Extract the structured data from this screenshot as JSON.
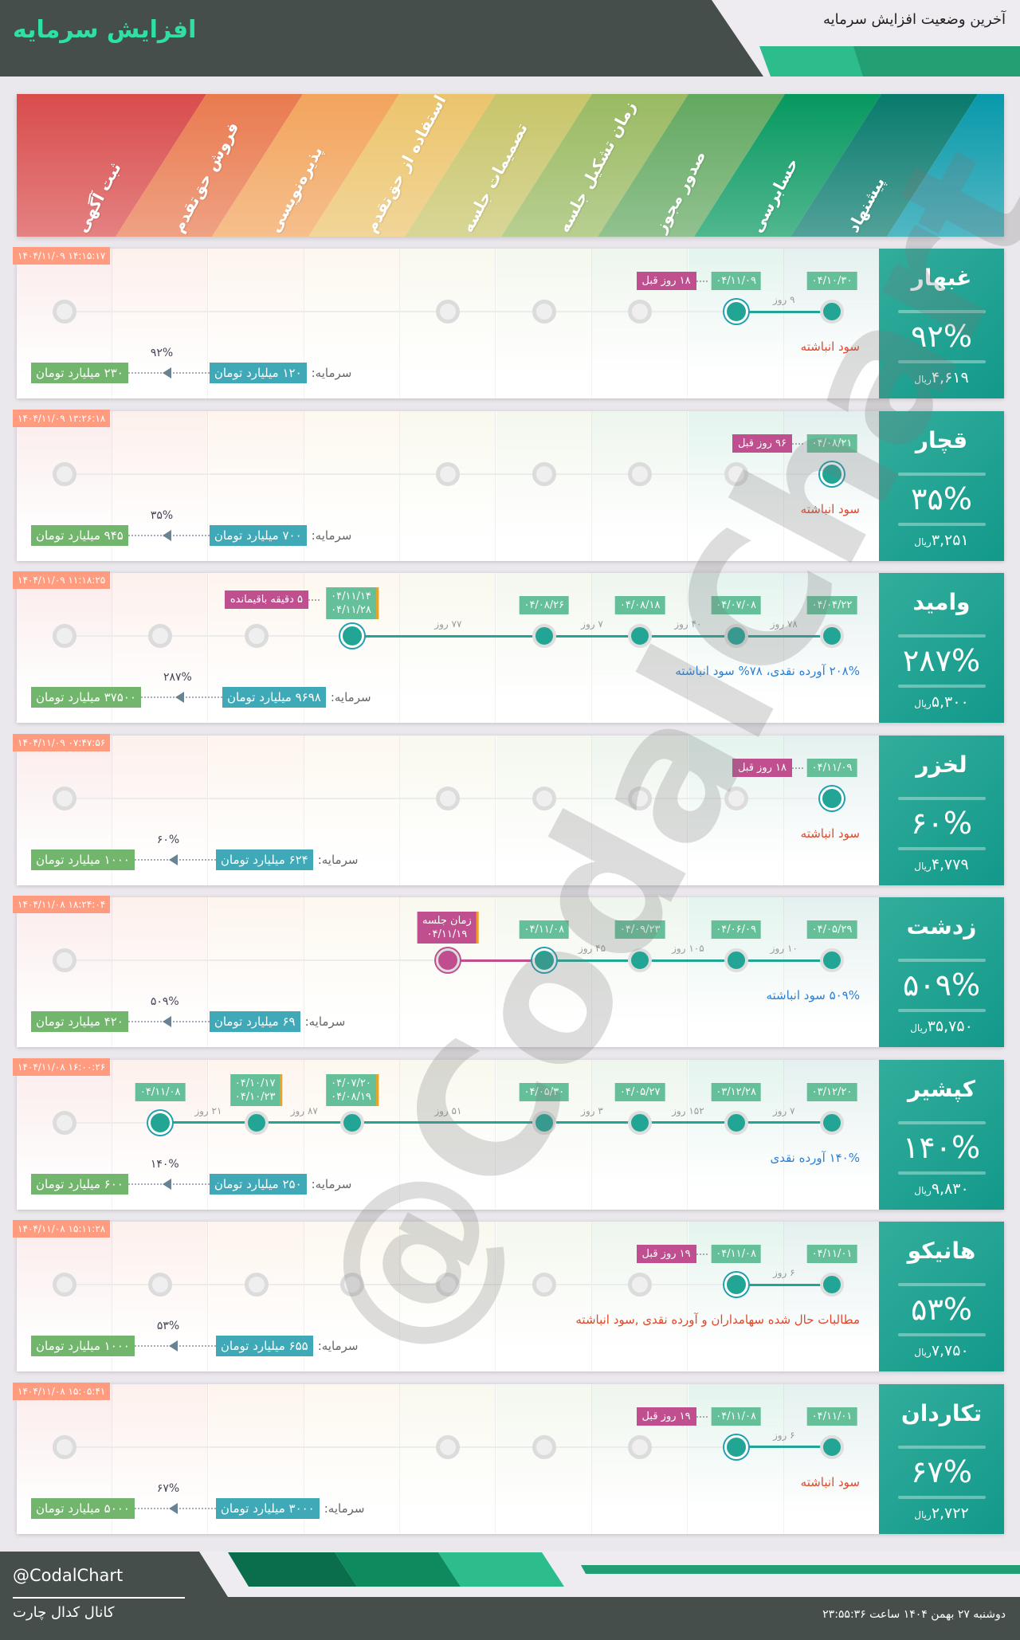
{
  "header": {
    "title": "افزایش سرمایه",
    "subtitle": "آخرین وضعیت افزایش سرمایه"
  },
  "stages": [
    "پیشنهاد",
    "حسابرسی",
    "صدور مجوز",
    "زمان تشکیل جلسه",
    "تصمیمات جلسه",
    "استفاده از حق‌تقدم",
    "پذیره‌نویسی",
    "فروش حق‌تقدم",
    "ثبت آگهی"
  ],
  "stage_colors": [
    "#087a6d",
    "#06985f",
    "#62a860",
    "#9aba62",
    "#c8c56a",
    "#ecc46c",
    "#f2a45c",
    "#e97a4f",
    "#d94c4c"
  ],
  "extra_stripe_color": "#0899aa",
  "labels": {
    "capital": "سرمایه:",
    "currency": "ریال"
  },
  "colors": {
    "note_red": "#e0482a",
    "note_blue": "#2b7fd6"
  },
  "rows": [
    {
      "symbol": "غبهار",
      "percent": "۹۲%",
      "price": "۴,۶۱۹",
      "timestamp": "۱۴۰۴/۱۱/۰۹ ۱۴:۱۵:۱۷",
      "nodes": [
        "done",
        "current",
        "gray",
        "gray",
        "gray",
        "none",
        "none",
        "none",
        "gray"
      ],
      "dates": [
        {
          "stage": 0,
          "lines": [
            "۰۴/۱۰/۳۰"
          ]
        },
        {
          "stage": 1,
          "lines": [
            "۰۴/۱۱/۰۹"
          ]
        }
      ],
      "badge": {
        "stage": 1,
        "text": "۱۸ روز قبل"
      },
      "gaps": [
        {
          "from": 0,
          "to": 1,
          "text": "۹ روز"
        }
      ],
      "note": {
        "text": "سود انباشته",
        "color": "red"
      },
      "capital_from": "۱۲۰ میلیارد تومان",
      "capital_to": "۲۳۰ میلیارد تومان",
      "capital_percent": "۹۲%"
    },
    {
      "symbol": "قچار",
      "percent": "۳۵%",
      "price": "۳,۲۵۱",
      "timestamp": "۱۴۰۴/۱۱/۰۹ ۱۳:۲۶:۱۸",
      "nodes": [
        "current",
        "gray",
        "gray",
        "gray",
        "gray",
        "none",
        "none",
        "none",
        "gray"
      ],
      "dates": [
        {
          "stage": 0,
          "lines": [
            "۰۴/۰۸/۲۱"
          ]
        }
      ],
      "badge": {
        "stage": 0,
        "text": "۹۶ روز قبل"
      },
      "gaps": [],
      "note": {
        "text": "سود انباشته",
        "color": "red"
      },
      "capital_from": "۷۰۰ میلیارد تومان",
      "capital_to": "۹۴۵ میلیارد تومان",
      "capital_percent": "۳۵%"
    },
    {
      "symbol": "وامید",
      "percent": "۲۸۷%",
      "price": "۵,۳۰۰",
      "timestamp": "۱۴۰۴/۱۱/۰۹ ۱۱:۱۸:۲۵",
      "nodes": [
        "done",
        "done",
        "done",
        "done",
        "none",
        "current",
        "gray",
        "gray",
        "gray"
      ],
      "dates": [
        {
          "stage": 0,
          "lines": [
            "۰۴/۰۴/۲۲"
          ]
        },
        {
          "stage": 1,
          "lines": [
            "۰۴/۰۷/۰۸"
          ]
        },
        {
          "stage": 2,
          "lines": [
            "۰۴/۰۸/۱۸"
          ]
        },
        {
          "stage": 3,
          "lines": [
            "۰۴/۰۸/۲۶"
          ]
        },
        {
          "stage": 5,
          "lines": [
            "۰۴/۱۱/۱۴",
            "۰۴/۱۱/۲۸"
          ]
        }
      ],
      "badge": {
        "stage": 5,
        "text": "۵ دقیقه باقیمانده"
      },
      "gaps": [
        {
          "from": 0,
          "to": 1,
          "text": "۷۸ روز"
        },
        {
          "from": 1,
          "to": 2,
          "text": "۴۰ روز"
        },
        {
          "from": 2,
          "to": 3,
          "text": "۷ روز"
        },
        {
          "from": 3,
          "to": 5,
          "text": "۷۷ روز"
        }
      ],
      "note": {
        "text": "۲۰۸% آورده نقدی، ۷۸% سود انباشته",
        "color": "blue"
      },
      "capital_from": "۹۶۹۸ میلیارد تومان",
      "capital_to": "۳۷۵۰۰ میلیارد تومان",
      "capital_percent": "۲۸۷%"
    },
    {
      "symbol": "لخزر",
      "percent": "۶۰%",
      "price": "۴,۷۷۹",
      "timestamp": "۱۴۰۴/۱۱/۰۹ ۰۷:۴۷:۵۶",
      "nodes": [
        "current",
        "gray",
        "gray",
        "gray",
        "gray",
        "none",
        "none",
        "none",
        "gray"
      ],
      "dates": [
        {
          "stage": 0,
          "lines": [
            "۰۴/۱۱/۰۹"
          ]
        }
      ],
      "badge": {
        "stage": 0,
        "text": "۱۸ روز قبل"
      },
      "gaps": [],
      "note": {
        "text": "سود انباشته",
        "color": "red"
      },
      "capital_from": "۶۲۴ میلیارد تومان",
      "capital_to": "۱۰۰۰ میلیارد تومان",
      "capital_percent": "۶۰%"
    },
    {
      "symbol": "زدشت",
      "percent": "۵۰۹%",
      "price": "۳۵,۷۵۰",
      "timestamp": "۱۴۰۴/۱۱/۰۸ ۱۸:۲۴:۰۴",
      "nodes": [
        "done",
        "done",
        "done",
        "current",
        "pink",
        "none",
        "none",
        "none",
        "gray"
      ],
      "dates": [
        {
          "stage": 0,
          "lines": [
            "۰۴/۰۵/۲۹"
          ]
        },
        {
          "stage": 1,
          "lines": [
            "۰۴/۰۶/۰۹"
          ]
        },
        {
          "stage": 2,
          "lines": [
            "۰۴/۰۹/۲۳"
          ]
        },
        {
          "stage": 3,
          "lines": [
            "۰۴/۱۱/۰۸"
          ]
        },
        {
          "stage": 4,
          "lines": [
            "زمان جلسه",
            "۰۴/۱۱/۱۹"
          ],
          "pink": true
        }
      ],
      "badge": null,
      "gaps": [
        {
          "from": 0,
          "to": 1,
          "text": "۱۰ روز"
        },
        {
          "from": 1,
          "to": 2,
          "text": "۱۰۵ روز"
        },
        {
          "from": 2,
          "to": 3,
          "text": "۴۵ روز"
        }
      ],
      "pink_segment": {
        "from": 3,
        "to": 4
      },
      "note": {
        "text": "۵۰۹% سود انباشته",
        "color": "blue"
      },
      "capital_from": "۶۹ میلیارد تومان",
      "capital_to": "۴۲۰ میلیارد تومان",
      "capital_percent": "۵۰۹%"
    },
    {
      "symbol": "کپشیر",
      "percent": "۱۴۰%",
      "price": "۹,۸۳۰",
      "timestamp": "۱۴۰۴/۱۱/۰۸ ۱۶:۰۰:۲۶",
      "nodes": [
        "done",
        "done",
        "done",
        "done",
        "none",
        "done",
        "done",
        "current",
        "gray"
      ],
      "dates": [
        {
          "stage": 0,
          "lines": [
            "۰۳/۱۲/۲۰"
          ]
        },
        {
          "stage": 1,
          "lines": [
            "۰۳/۱۲/۲۸"
          ]
        },
        {
          "stage": 2,
          "lines": [
            "۰۴/۰۵/۲۷"
          ]
        },
        {
          "stage": 3,
          "lines": [
            "۰۴/۰۵/۳۰"
          ]
        },
        {
          "stage": 5,
          "lines": [
            "۰۴/۰۷/۲۰",
            "۰۴/۰۸/۱۹"
          ]
        },
        {
          "stage": 6,
          "lines": [
            "۰۴/۱۰/۱۷",
            "۰۴/۱۰/۲۳"
          ]
        },
        {
          "stage": 7,
          "lines": [
            "۰۴/۱۱/۰۸"
          ]
        }
      ],
      "badge": null,
      "gaps": [
        {
          "from": 0,
          "to": 1,
          "text": "۷ روز"
        },
        {
          "from": 1,
          "to": 2,
          "text": "۱۵۲ روز"
        },
        {
          "from": 2,
          "to": 3,
          "text": "۳ روز"
        },
        {
          "from": 3,
          "to": 5,
          "text": "۵۱ روز"
        },
        {
          "from": 5,
          "to": 6,
          "text": "۸۷ روز"
        },
        {
          "from": 6,
          "to": 7,
          "text": "۲۱ روز"
        }
      ],
      "note": {
        "text": "۱۴۰% آورده نقدی",
        "color": "blue"
      },
      "capital_from": "۲۵۰ میلیارد تومان",
      "capital_to": "۶۰۰ میلیارد تومان",
      "capital_percent": "۱۴۰%"
    },
    {
      "symbol": "هانیکو",
      "percent": "۵۳%",
      "price": "۷,۷۵۰",
      "timestamp": "۱۴۰۴/۱۱/۰۸ ۱۵:۱۱:۲۸",
      "nodes": [
        "done",
        "current",
        "gray",
        "gray",
        "gray",
        "gray",
        "gray",
        "gray",
        "gray"
      ],
      "dates": [
        {
          "stage": 0,
          "lines": [
            "۰۴/۱۱/۰۱"
          ]
        },
        {
          "stage": 1,
          "lines": [
            "۰۴/۱۱/۰۸"
          ]
        }
      ],
      "badge": {
        "stage": 1,
        "text": "۱۹ روز قبل"
      },
      "gaps": [
        {
          "from": 0,
          "to": 1,
          "text": "۶ روز"
        }
      ],
      "note": {
        "text": "مطالبات حال شده سهامداران و آورده نقدی ,سود انباشته",
        "color": "red"
      },
      "capital_from": "۶۵۵ میلیارد تومان",
      "capital_to": "۱۰۰۰ میلیارد تومان",
      "capital_percent": "۵۳%"
    },
    {
      "symbol": "تکاردان",
      "percent": "۶۷%",
      "price": "۲,۷۲۲",
      "timestamp": "۱۴۰۴/۱۱/۰۸ ۱۵:۰۵:۴۱",
      "nodes": [
        "done",
        "current",
        "gray",
        "gray",
        "gray",
        "none",
        "none",
        "none",
        "gray"
      ],
      "dates": [
        {
          "stage": 0,
          "lines": [
            "۰۴/۱۱/۰۱"
          ]
        },
        {
          "stage": 1,
          "lines": [
            "۰۴/۱۱/۰۸"
          ]
        }
      ],
      "badge": {
        "stage": 1,
        "text": "۱۹ روز قبل"
      },
      "gaps": [
        {
          "from": 0,
          "to": 1,
          "text": "۶ روز"
        }
      ],
      "note": {
        "text": "سود انباشته",
        "color": "red"
      },
      "capital_from": "۳۰۰۰ میلیارد تومان",
      "capital_to": "۵۰۰۰ میلیارد تومان",
      "capital_percent": "۶۷%"
    }
  ],
  "footer": {
    "handle": "@CodalChart",
    "channel": "کانال کدال چارت",
    "datetime": "دوشنبه ۲۷ بهمن ۱۴۰۴ ساعت ۲۳:۵۵:۳۶"
  }
}
